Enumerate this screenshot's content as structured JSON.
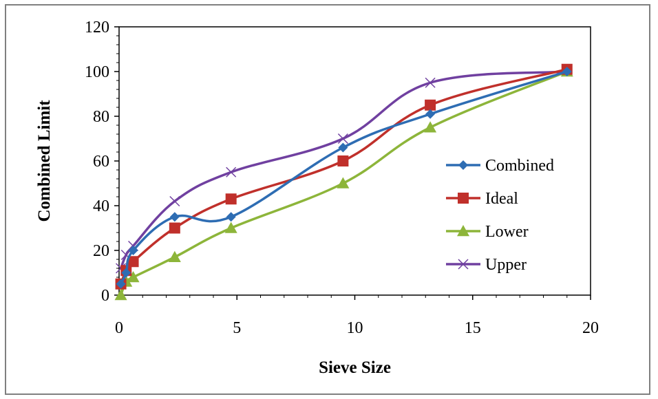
{
  "chart_data": {
    "type": "line",
    "title": "",
    "xlabel": "Sieve Size",
    "ylabel": "Combined Limit",
    "xlim": [
      0,
      20
    ],
    "ylim": [
      0,
      120
    ],
    "xticks": [
      0,
      5,
      10,
      15,
      20
    ],
    "yticks": [
      0,
      20,
      40,
      60,
      80,
      100,
      120
    ],
    "grid": false,
    "legend_position": "right",
    "smooth": true,
    "series": [
      {
        "name": "Combined",
        "color": "#2e6db3",
        "marker": "diamond",
        "points": [
          [
            0.075,
            5
          ],
          [
            0.3,
            10
          ],
          [
            0.6,
            20
          ],
          [
            2.36,
            35
          ],
          [
            4.75,
            35
          ],
          [
            9.5,
            66
          ],
          [
            13.2,
            81
          ],
          [
            19,
            100
          ]
        ]
      },
      {
        "name": "Ideal",
        "color": "#c0302b",
        "marker": "square",
        "points": [
          [
            0.075,
            5
          ],
          [
            0.3,
            11
          ],
          [
            0.6,
            15
          ],
          [
            2.36,
            30
          ],
          [
            4.75,
            43
          ],
          [
            9.5,
            60
          ],
          [
            13.2,
            85
          ],
          [
            19,
            101
          ]
        ]
      },
      {
        "name": "Lower",
        "color": "#8db53a",
        "marker": "triangle",
        "points": [
          [
            0.075,
            0
          ],
          [
            0.3,
            6
          ],
          [
            0.6,
            8
          ],
          [
            2.36,
            17
          ],
          [
            4.75,
            30
          ],
          [
            9.5,
            50
          ],
          [
            13.2,
            75
          ],
          [
            19,
            100
          ]
        ]
      },
      {
        "name": "Upper",
        "color": "#7040a0",
        "marker": "x",
        "points": [
          [
            0.075,
            12
          ],
          [
            0.3,
            18
          ],
          [
            0.6,
            22
          ],
          [
            2.36,
            42
          ],
          [
            4.75,
            55
          ],
          [
            9.5,
            70
          ],
          [
            13.2,
            95
          ],
          [
            19,
            100
          ]
        ]
      }
    ]
  }
}
